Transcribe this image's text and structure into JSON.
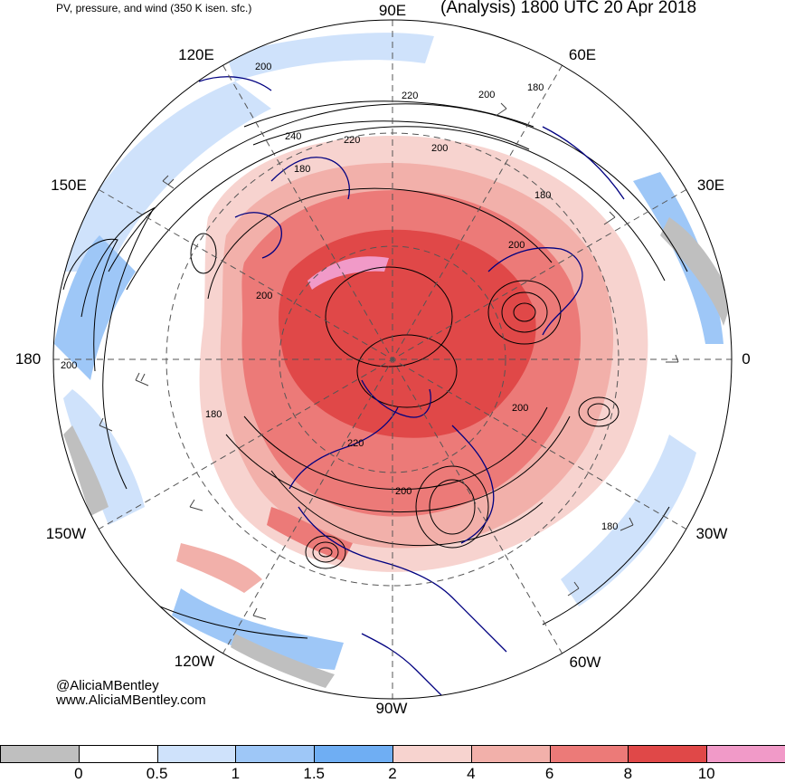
{
  "header": {
    "subtitle": "PV, pressure, and wind (350 K isen. sfc.)",
    "title": "(Analysis) 1800 UTC 20 Apr 2018"
  },
  "map": {
    "projection": "north-polar-stereographic",
    "longitude_labels": {
      "lon_90e": "90E",
      "lon_60e": "60E",
      "lon_30e": "30E",
      "lon_0": "0",
      "lon_30w": "30W",
      "lon_60w": "60W",
      "lon_90w": "90W",
      "lon_120w": "120W",
      "lon_150w": "150W",
      "lon_180": "180",
      "lon_150e": "150E",
      "lon_120e": "120E"
    },
    "contour_labels": [
      "200",
      "220",
      "200",
      "180",
      "240",
      "220",
      "200",
      "180",
      "180",
      "200",
      "200",
      "200",
      "180",
      "200",
      "220",
      "200",
      "180"
    ],
    "colors": {
      "coastline": "#000080",
      "contour": "#000000",
      "grid": "#555555"
    }
  },
  "credit": {
    "handle": "@AliciaMBentley",
    "website": "www.AliciaMBentley.com"
  },
  "colorbar": {
    "bins": [
      {
        "color": "#bfbfbf"
      },
      {
        "color": "#ffffff"
      },
      {
        "color": "#cfe2fb"
      },
      {
        "color": "#9ec7f7"
      },
      {
        "color": "#6faef3"
      },
      {
        "color": "#f7d3cf"
      },
      {
        "color": "#f2b0aa"
      },
      {
        "color": "#ec7a78"
      },
      {
        "color": "#e04848"
      },
      {
        "color": "#f19ac8"
      }
    ],
    "tick_labels": [
      "0",
      "0.5",
      "1",
      "1.5",
      "2",
      "4",
      "6",
      "8",
      "10"
    ]
  }
}
